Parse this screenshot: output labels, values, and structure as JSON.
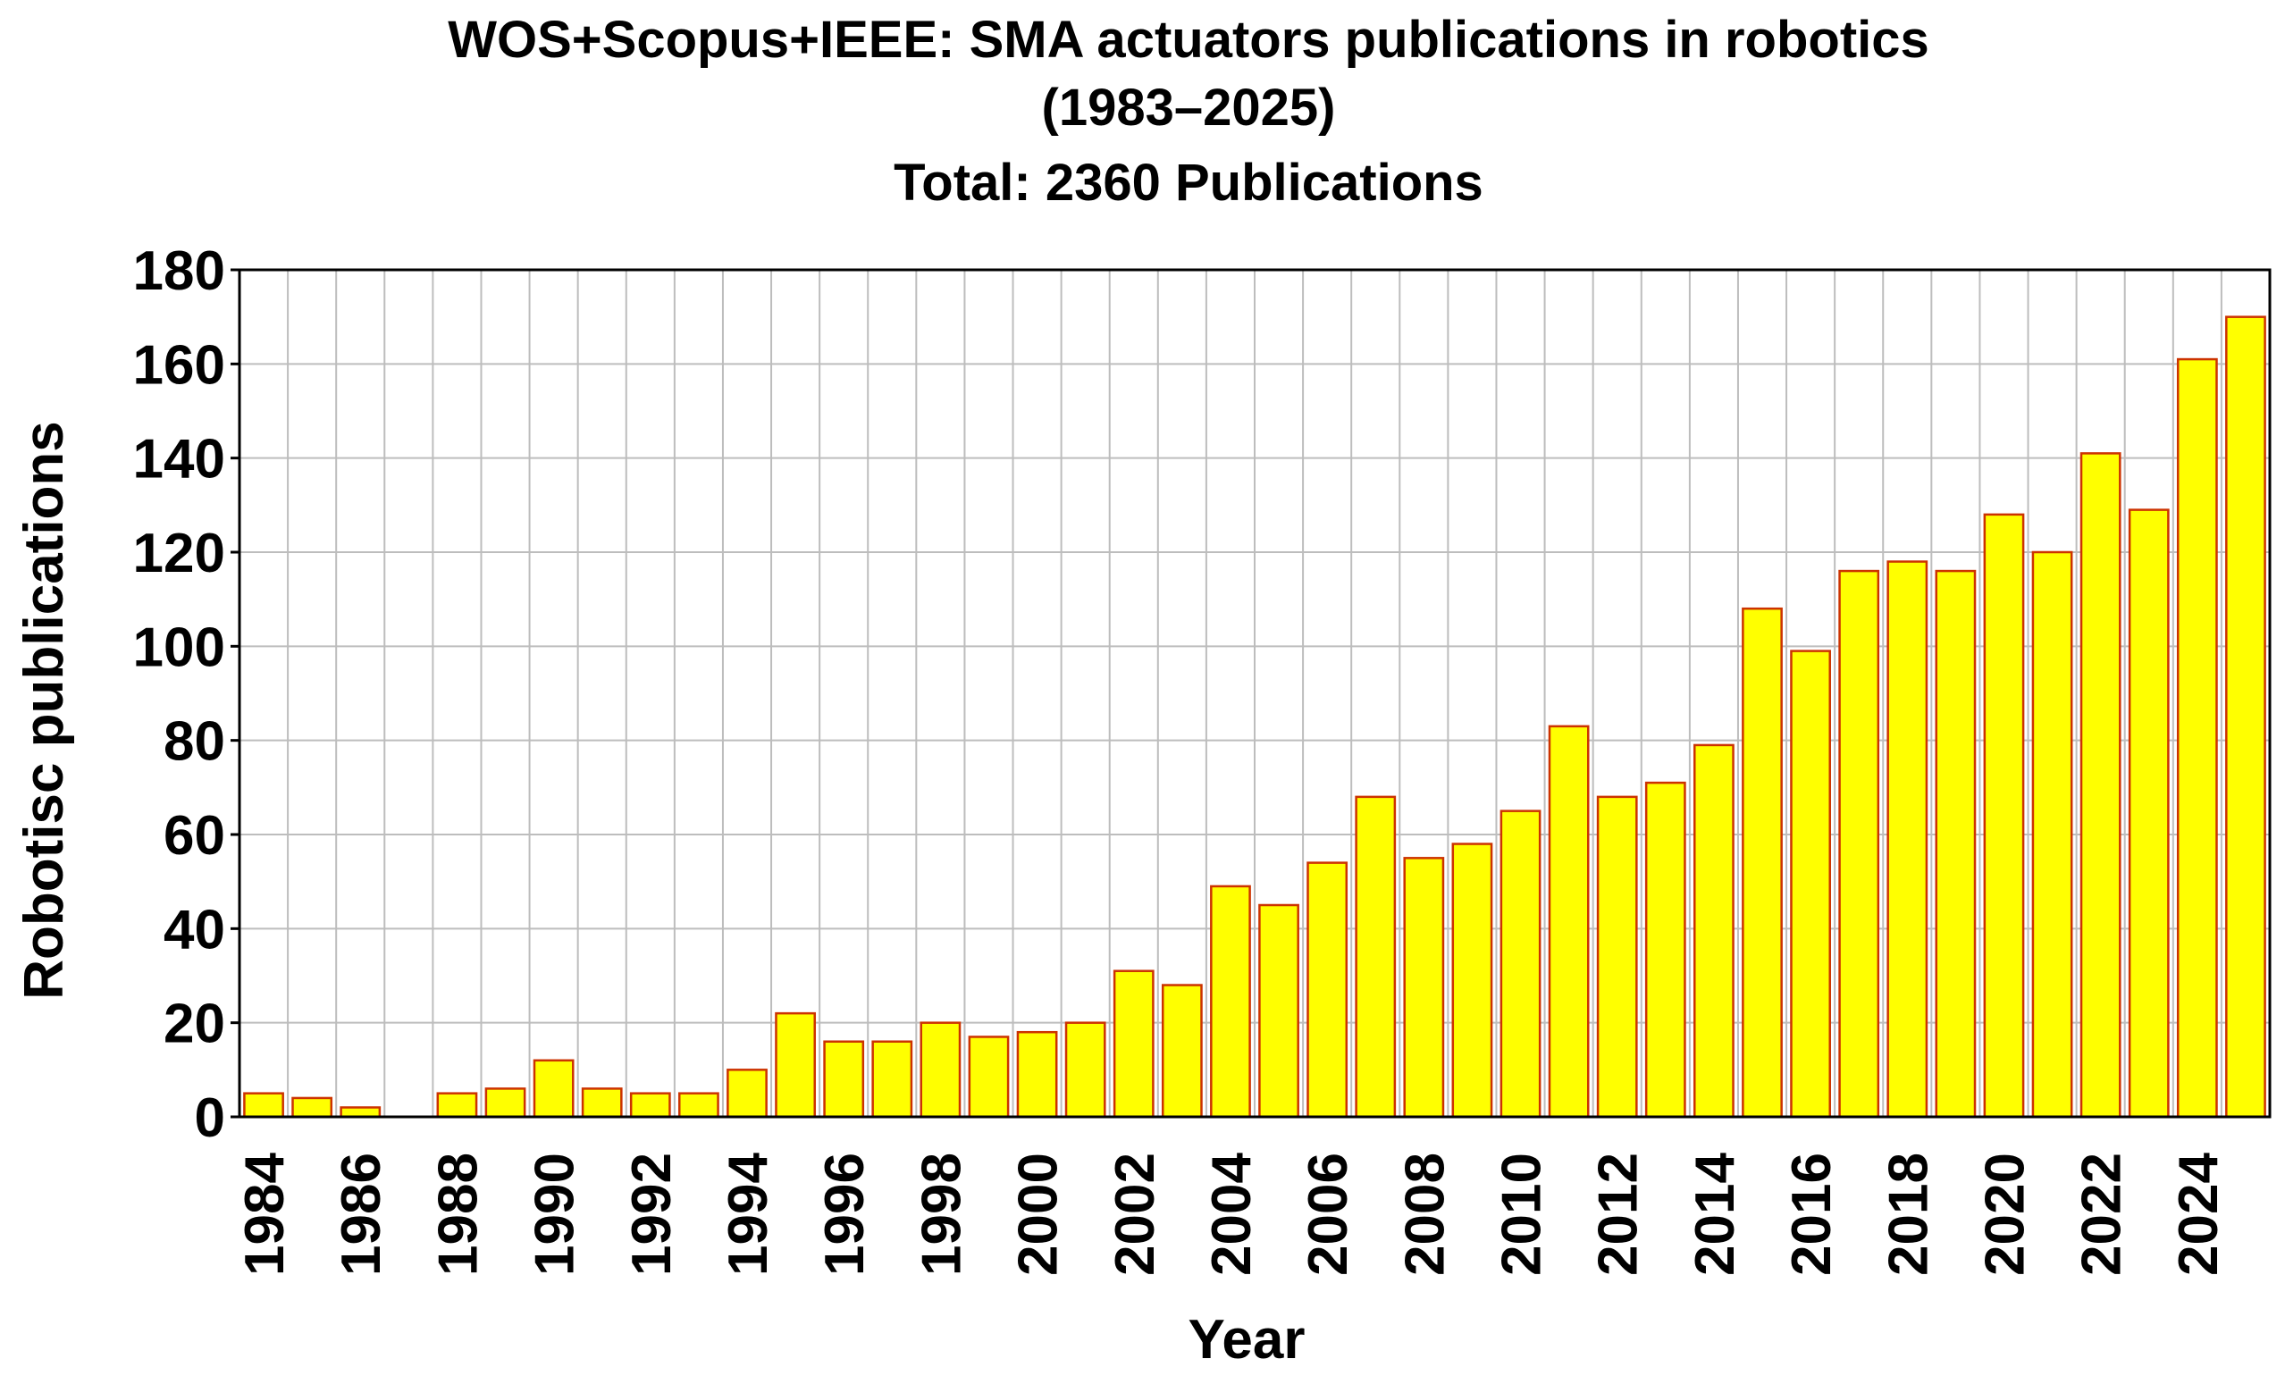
{
  "chart_data": {
    "type": "bar",
    "title_lines": [
      "WOS+Scopus+IEEE:  SMA actuators publications in robotics",
      "(1983–2025)",
      "Total:   2360 Publications"
    ],
    "xlabel": "Year",
    "ylabel": "Robotisc publications",
    "ylim": [
      0,
      180
    ],
    "y_ticks": [
      "0",
      "20",
      "40",
      "60",
      "80",
      "100",
      "120",
      "140",
      "160",
      "180"
    ],
    "x_tick_labels": [
      "1984",
      "1986",
      "1988",
      "1990",
      "1992",
      "1994",
      "1996",
      "1998",
      "2000",
      "2002",
      "2004",
      "2006",
      "2008",
      "2010",
      "2012",
      "2014",
      "2016",
      "2018",
      "2020",
      "2022",
      "2024"
    ],
    "categories": [
      "1984",
      "1985",
      "1986",
      "1987",
      "1988",
      "1989",
      "1990",
      "1991",
      "1992",
      "1993",
      "1994",
      "1995",
      "1996",
      "1997",
      "1998",
      "1999",
      "2000",
      "2001",
      "2002",
      "2003",
      "2004",
      "2005",
      "2006",
      "2007",
      "2008",
      "2009",
      "2010",
      "2011",
      "2012",
      "2013",
      "2014",
      "2015",
      "2016",
      "2017",
      "2018",
      "2019",
      "2020",
      "2021",
      "2022",
      "2023",
      "2024",
      "2025"
    ],
    "values": [
      5,
      4,
      2,
      0,
      5,
      6,
      12,
      6,
      5,
      5,
      10,
      22,
      16,
      16,
      20,
      17,
      18,
      20,
      31,
      28,
      49,
      45,
      54,
      68,
      55,
      58,
      65,
      83,
      68,
      71,
      79,
      108,
      99,
      116,
      118,
      116,
      128,
      120,
      141,
      129,
      161,
      170
    ],
    "grid": true,
    "legend": "none",
    "colors": {
      "bar_fill": "#ffff00",
      "bar_stroke": "#cc3300",
      "grid": "#bdbdbd",
      "frame": "#000000"
    }
  }
}
